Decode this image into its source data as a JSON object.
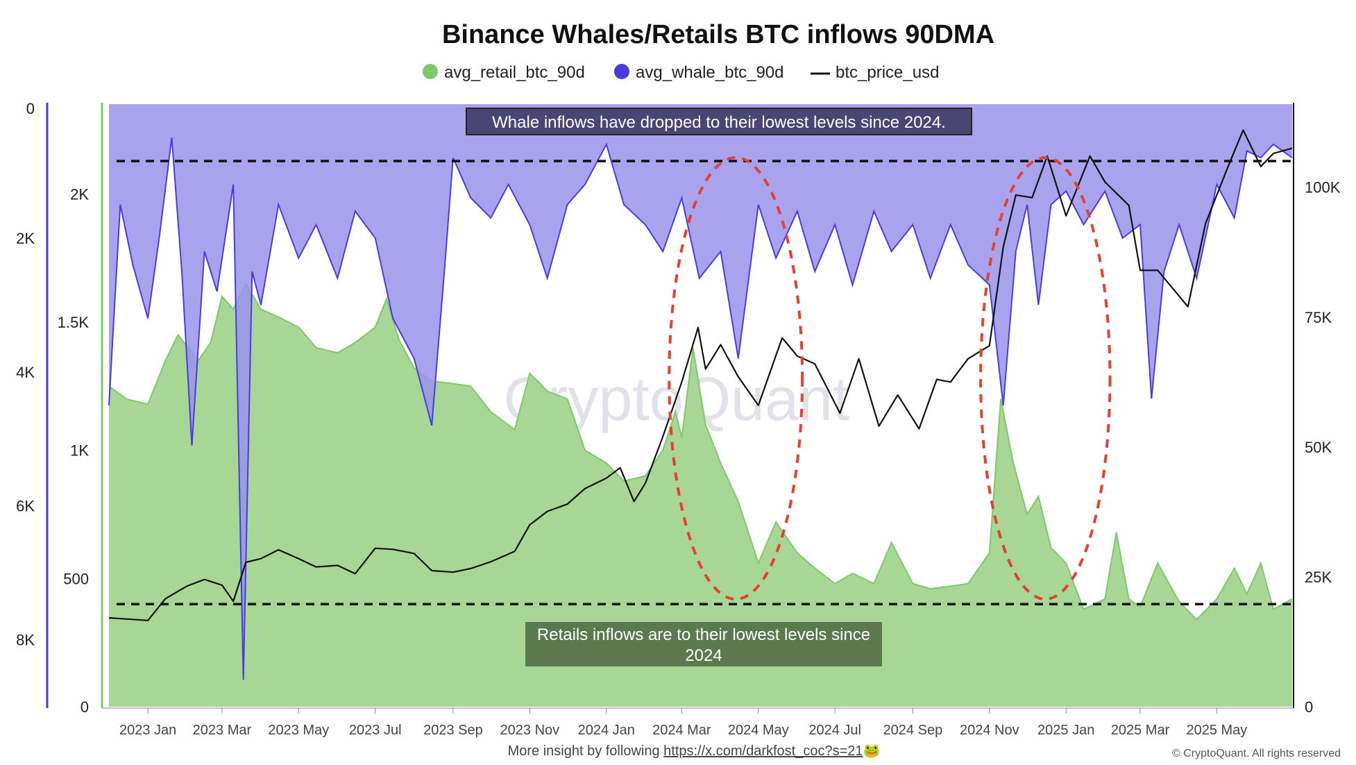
{
  "chart_data": {
    "type": "area",
    "title": "Binance Whales/Retails BTC inflows 90DMA",
    "legend": [
      {
        "name": "avg_retail_btc_90d",
        "color": "#7ec96a",
        "marker": "dot"
      },
      {
        "name": "avg_whale_btc_90d",
        "color": "#4a3be0",
        "marker": "dot"
      },
      {
        "name": "btc_price_usd",
        "color": "#111111",
        "marker": "line"
      }
    ],
    "legend_position": "top-center",
    "grid": false,
    "x_ticks": [
      "2023 Jan",
      "2023 Mar",
      "2023 May",
      "2023 Jul",
      "2023 Sep",
      "2023 Nov",
      "2024 Jan",
      "2024 Mar",
      "2024 May",
      "2024 Jul",
      "2024 Sep",
      "2024 Nov",
      "2025 Jan",
      "2025 Mar",
      "2025 May"
    ],
    "x_range": [
      "2022-12-01",
      "2025-06-30"
    ],
    "axes": {
      "whale_left": {
        "ticks": [
          {
            "label": "0",
            "value": 0
          },
          {
            "label": "2K",
            "value": 2000
          },
          {
            "label": "4K",
            "value": 4000
          },
          {
            "label": "6K",
            "value": 6000
          },
          {
            "label": "8K",
            "value": 8000
          }
        ],
        "range": [
          0,
          9000
        ],
        "inverted": true,
        "color": "#4a3be0"
      },
      "retail_left": {
        "ticks": [
          {
            "label": "2K",
            "value": 2000
          },
          {
            "label": "1.5K",
            "value": 1500
          },
          {
            "label": "1K",
            "value": 1000
          },
          {
            "label": "500",
            "value": 500
          },
          {
            "label": "0",
            "value": 0
          }
        ],
        "range": [
          0,
          2350
        ],
        "color": "#7ec96a"
      },
      "price_right": {
        "ticks": [
          {
            "label": "100K",
            "value": 100000
          },
          {
            "label": "75K",
            "value": 75000
          },
          {
            "label": "50K",
            "value": 50000
          },
          {
            "label": "25K",
            "value": 25000
          },
          {
            "label": "0",
            "value": 0
          }
        ],
        "range": [
          0,
          116000
        ],
        "color": "#111111"
      }
    },
    "series": [
      {
        "name": "avg_retail_btc_90d",
        "axis": "retail_left",
        "color": "#7ec96a",
        "fill": "#a8d694",
        "points": [
          [
            "2022-12-01",
            1250
          ],
          [
            "2022-12-15",
            1200
          ],
          [
            "2023-01-01",
            1180
          ],
          [
            "2023-01-15",
            1350
          ],
          [
            "2023-01-25",
            1450
          ],
          [
            "2023-02-10",
            1350
          ],
          [
            "2023-02-20",
            1420
          ],
          [
            "2023-03-01",
            1600
          ],
          [
            "2023-03-10",
            1550
          ],
          [
            "2023-03-20",
            1650
          ],
          [
            "2023-04-01",
            1550
          ],
          [
            "2023-04-15",
            1520
          ],
          [
            "2023-05-01",
            1480
          ],
          [
            "2023-05-15",
            1400
          ],
          [
            "2023-06-01",
            1380
          ],
          [
            "2023-06-15",
            1420
          ],
          [
            "2023-07-01",
            1480
          ],
          [
            "2023-07-10",
            1590
          ],
          [
            "2023-07-20",
            1430
          ],
          [
            "2023-08-01",
            1320
          ],
          [
            "2023-08-15",
            1270
          ],
          [
            "2023-09-01",
            1260
          ],
          [
            "2023-09-15",
            1250
          ],
          [
            "2023-10-01",
            1150
          ],
          [
            "2023-10-20",
            1080
          ],
          [
            "2023-11-01",
            1300
          ],
          [
            "2023-11-15",
            1230
          ],
          [
            "2023-12-01",
            1200
          ],
          [
            "2023-12-15",
            1000
          ],
          [
            "2024-01-01",
            950
          ],
          [
            "2024-01-15",
            880
          ],
          [
            "2024-02-01",
            900
          ],
          [
            "2024-02-15",
            1000
          ],
          [
            "2024-02-25",
            1150
          ],
          [
            "2024-03-01",
            1050
          ],
          [
            "2024-03-10",
            1400
          ],
          [
            "2024-03-20",
            1100
          ],
          [
            "2024-04-01",
            950
          ],
          [
            "2024-04-15",
            800
          ],
          [
            "2024-05-01",
            560
          ],
          [
            "2024-05-15",
            720
          ],
          [
            "2024-06-01",
            600
          ],
          [
            "2024-06-15",
            540
          ],
          [
            "2024-07-01",
            480
          ],
          [
            "2024-07-15",
            520
          ],
          [
            "2024-08-01",
            480
          ],
          [
            "2024-08-15",
            640
          ],
          [
            "2024-09-01",
            480
          ],
          [
            "2024-09-15",
            460
          ],
          [
            "2024-10-01",
            470
          ],
          [
            "2024-10-15",
            480
          ],
          [
            "2024-11-01",
            600
          ],
          [
            "2024-11-10",
            1200
          ],
          [
            "2024-11-20",
            950
          ],
          [
            "2024-12-01",
            750
          ],
          [
            "2024-12-10",
            820
          ],
          [
            "2024-12-20",
            620
          ],
          [
            "2025-01-01",
            560
          ],
          [
            "2025-01-15",
            380
          ],
          [
            "2025-02-01",
            420
          ],
          [
            "2025-02-10",
            680
          ],
          [
            "2025-02-20",
            420
          ],
          [
            "2025-03-01",
            390
          ],
          [
            "2025-03-15",
            560
          ],
          [
            "2025-04-01",
            410
          ],
          [
            "2025-04-15",
            340
          ],
          [
            "2025-05-01",
            420
          ],
          [
            "2025-05-15",
            540
          ],
          [
            "2025-05-25",
            440
          ],
          [
            "2025-06-05",
            560
          ],
          [
            "2025-06-15",
            380
          ],
          [
            "2025-06-30",
            420
          ]
        ]
      },
      {
        "name": "avg_whale_btc_90d",
        "axis": "whale_left",
        "color": "#4a3be0",
        "fill": "#9a93eb",
        "points": [
          [
            "2022-12-01",
            4500
          ],
          [
            "2022-12-10",
            1500
          ],
          [
            "2022-12-20",
            2400
          ],
          [
            "2023-01-01",
            3200
          ],
          [
            "2023-01-10",
            2000
          ],
          [
            "2023-01-20",
            500
          ],
          [
            "2023-01-28",
            2500
          ],
          [
            "2023-02-05",
            5100
          ],
          [
            "2023-02-15",
            2200
          ],
          [
            "2023-02-25",
            2800
          ],
          [
            "2023-03-10",
            1200
          ],
          [
            "2023-03-18",
            8600
          ],
          [
            "2023-03-25",
            2500
          ],
          [
            "2023-04-01",
            3000
          ],
          [
            "2023-04-15",
            1500
          ],
          [
            "2023-05-01",
            2300
          ],
          [
            "2023-05-15",
            1800
          ],
          [
            "2023-06-01",
            2600
          ],
          [
            "2023-06-15",
            1600
          ],
          [
            "2023-07-01",
            2000
          ],
          [
            "2023-07-15",
            3200
          ],
          [
            "2023-08-01",
            3800
          ],
          [
            "2023-08-15",
            4800
          ],
          [
            "2023-08-25",
            2500
          ],
          [
            "2023-09-01",
            800
          ],
          [
            "2023-09-15",
            1400
          ],
          [
            "2023-10-01",
            1700
          ],
          [
            "2023-10-15",
            1200
          ],
          [
            "2023-11-01",
            1800
          ],
          [
            "2023-11-15",
            2600
          ],
          [
            "2023-12-01",
            1500
          ],
          [
            "2023-12-15",
            1200
          ],
          [
            "2024-01-01",
            600
          ],
          [
            "2024-01-15",
            1500
          ],
          [
            "2024-02-01",
            1800
          ],
          [
            "2024-02-15",
            2200
          ],
          [
            "2024-03-01",
            1400
          ],
          [
            "2024-03-15",
            2600
          ],
          [
            "2024-04-01",
            2200
          ],
          [
            "2024-04-15",
            3800
          ],
          [
            "2024-05-01",
            1500
          ],
          [
            "2024-05-15",
            2300
          ],
          [
            "2024-06-01",
            1600
          ],
          [
            "2024-06-15",
            2500
          ],
          [
            "2024-07-01",
            1800
          ],
          [
            "2024-07-15",
            2700
          ],
          [
            "2024-08-01",
            1600
          ],
          [
            "2024-08-15",
            2200
          ],
          [
            "2024-09-01",
            1800
          ],
          [
            "2024-09-15",
            2600
          ],
          [
            "2024-10-01",
            1800
          ],
          [
            "2024-10-15",
            2400
          ],
          [
            "2024-11-01",
            2700
          ],
          [
            "2024-11-12",
            4500
          ],
          [
            "2024-11-22",
            2200
          ],
          [
            "2024-12-01",
            1500
          ],
          [
            "2024-12-10",
            3000
          ],
          [
            "2024-12-20",
            1500
          ],
          [
            "2025-01-01",
            1300
          ],
          [
            "2025-01-15",
            1800
          ],
          [
            "2025-02-01",
            1300
          ],
          [
            "2025-02-15",
            2000
          ],
          [
            "2025-03-01",
            1800
          ],
          [
            "2025-03-10",
            4400
          ],
          [
            "2025-03-20",
            2500
          ],
          [
            "2025-04-01",
            1800
          ],
          [
            "2025-04-15",
            2600
          ],
          [
            "2025-05-01",
            1200
          ],
          [
            "2025-05-15",
            1700
          ],
          [
            "2025-05-25",
            700
          ],
          [
            "2025-06-05",
            800
          ],
          [
            "2025-06-15",
            600
          ],
          [
            "2025-06-30",
            800
          ]
        ]
      },
      {
        "name": "btc_price_usd",
        "axis": "price_right",
        "color": "#111111",
        "points": [
          [
            "2022-12-01",
            17100
          ],
          [
            "2022-12-20",
            16800
          ],
          [
            "2023-01-01",
            16600
          ],
          [
            "2023-01-15",
            20800
          ],
          [
            "2023-02-01",
            23200
          ],
          [
            "2023-02-15",
            24500
          ],
          [
            "2023-03-01",
            23400
          ],
          [
            "2023-03-10",
            20300
          ],
          [
            "2023-03-20",
            27800
          ],
          [
            "2023-04-01",
            28500
          ],
          [
            "2023-04-15",
            30200
          ],
          [
            "2023-05-01",
            28500
          ],
          [
            "2023-05-15",
            26900
          ],
          [
            "2023-06-01",
            27200
          ],
          [
            "2023-06-15",
            25600
          ],
          [
            "2023-07-01",
            30500
          ],
          [
            "2023-07-15",
            30300
          ],
          [
            "2023-08-01",
            29500
          ],
          [
            "2023-08-15",
            26200
          ],
          [
            "2023-09-01",
            25900
          ],
          [
            "2023-09-15",
            26600
          ],
          [
            "2023-10-01",
            27900
          ],
          [
            "2023-10-20",
            29900
          ],
          [
            "2023-11-01",
            35000
          ],
          [
            "2023-11-15",
            37600
          ],
          [
            "2023-12-01",
            39000
          ],
          [
            "2023-12-15",
            42000
          ],
          [
            "2024-01-01",
            44000
          ],
          [
            "2024-01-12",
            46000
          ],
          [
            "2024-01-23",
            39500
          ],
          [
            "2024-02-01",
            43000
          ],
          [
            "2024-02-15",
            52000
          ],
          [
            "2024-03-01",
            62500
          ],
          [
            "2024-03-14",
            73000
          ],
          [
            "2024-03-20",
            65000
          ],
          [
            "2024-04-01",
            69700
          ],
          [
            "2024-04-15",
            63500
          ],
          [
            "2024-05-01",
            58000
          ],
          [
            "2024-05-20",
            71000
          ],
          [
            "2024-06-01",
            67500
          ],
          [
            "2024-06-15",
            66000
          ],
          [
            "2024-07-05",
            56500
          ],
          [
            "2024-07-20",
            67000
          ],
          [
            "2024-08-05",
            54000
          ],
          [
            "2024-08-20",
            60000
          ],
          [
            "2024-09-06",
            53500
          ],
          [
            "2024-09-20",
            63000
          ],
          [
            "2024-10-01",
            62500
          ],
          [
            "2024-10-15",
            67000
          ],
          [
            "2024-11-01",
            69500
          ],
          [
            "2024-11-12",
            88500
          ],
          [
            "2024-11-22",
            98500
          ],
          [
            "2024-12-05",
            98000
          ],
          [
            "2024-12-17",
            106000
          ],
          [
            "2025-01-01",
            94500
          ],
          [
            "2025-01-20",
            106000
          ],
          [
            "2025-02-01",
            101000
          ],
          [
            "2025-02-20",
            96500
          ],
          [
            "2025-03-01",
            84000
          ],
          [
            "2025-03-15",
            84000
          ],
          [
            "2025-04-08",
            77000
          ],
          [
            "2025-04-22",
            93000
          ],
          [
            "2025-05-10",
            104000
          ],
          [
            "2025-05-22",
            111000
          ],
          [
            "2025-06-05",
            104000
          ],
          [
            "2025-06-15",
            106500
          ],
          [
            "2025-06-30",
            107500
          ]
        ]
      }
    ],
    "reference_lines": [
      {
        "axis": "whale_left",
        "value": 850,
        "style": "dashed"
      },
      {
        "axis": "retail_left",
        "value": 400,
        "style": "dashed"
      }
    ],
    "highlights": [
      {
        "type": "ellipse",
        "from": "2024-02-20",
        "to": "2024-06-05",
        "style": "dashed"
      },
      {
        "type": "ellipse",
        "from": "2024-10-25",
        "to": "2025-02-05",
        "style": "dashed"
      }
    ],
    "annotations": [
      {
        "text": "Whale inflows have dropped to their lowest levels since 2024.",
        "bg": "#4b4574"
      },
      {
        "text": "Retails inflows are to their lowest levels since 2024",
        "bg": "#5a7a4e"
      }
    ],
    "watermark": "CryptoQuant"
  },
  "footer": {
    "prefix": "More insight by following ",
    "link": "https://x.com/darkfost_coc?s=21",
    "emoji": "🐸",
    "copyright": "© CryptoQuant. All rights reserved"
  },
  "colors": {
    "retail_line": "#7ec96a",
    "retail_fill": "#a8d694",
    "whale_line": "#4a3be0",
    "whale_fill": "#9a93eb",
    "price_line": "#111111",
    "highlight": "#e8402f"
  }
}
